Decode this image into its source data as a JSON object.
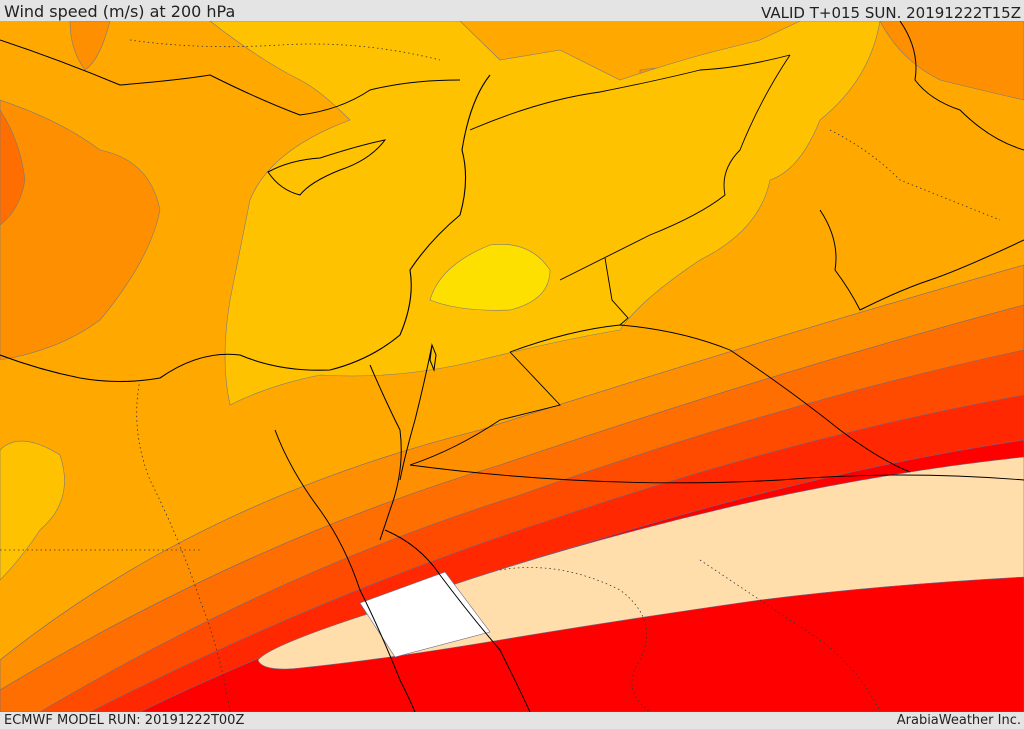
{
  "header": {
    "title": "Wind speed (m/s) at 200 hPa",
    "valid": "VALID T+015 SUN. 20191222T15Z"
  },
  "footer": {
    "model_run": "ECMWF MODEL RUN: 20191222T00Z",
    "credit": "ArabiaWeather Inc."
  },
  "map": {
    "variable": "wind speed",
    "level": "200 hPa",
    "units": "m/s",
    "colors": {
      "pale_yellow": "#fde000",
      "gold": "#fec200",
      "light_orange": "#ffa900",
      "orange": "#fe8f00",
      "dark_orange": "#ff6e00",
      "red_orange": "#ff4b00",
      "orange_red": "#ff2800",
      "red": "#ff0000",
      "jet_core": "#ffdeab",
      "jet_max": "#ffffff"
    }
  }
}
